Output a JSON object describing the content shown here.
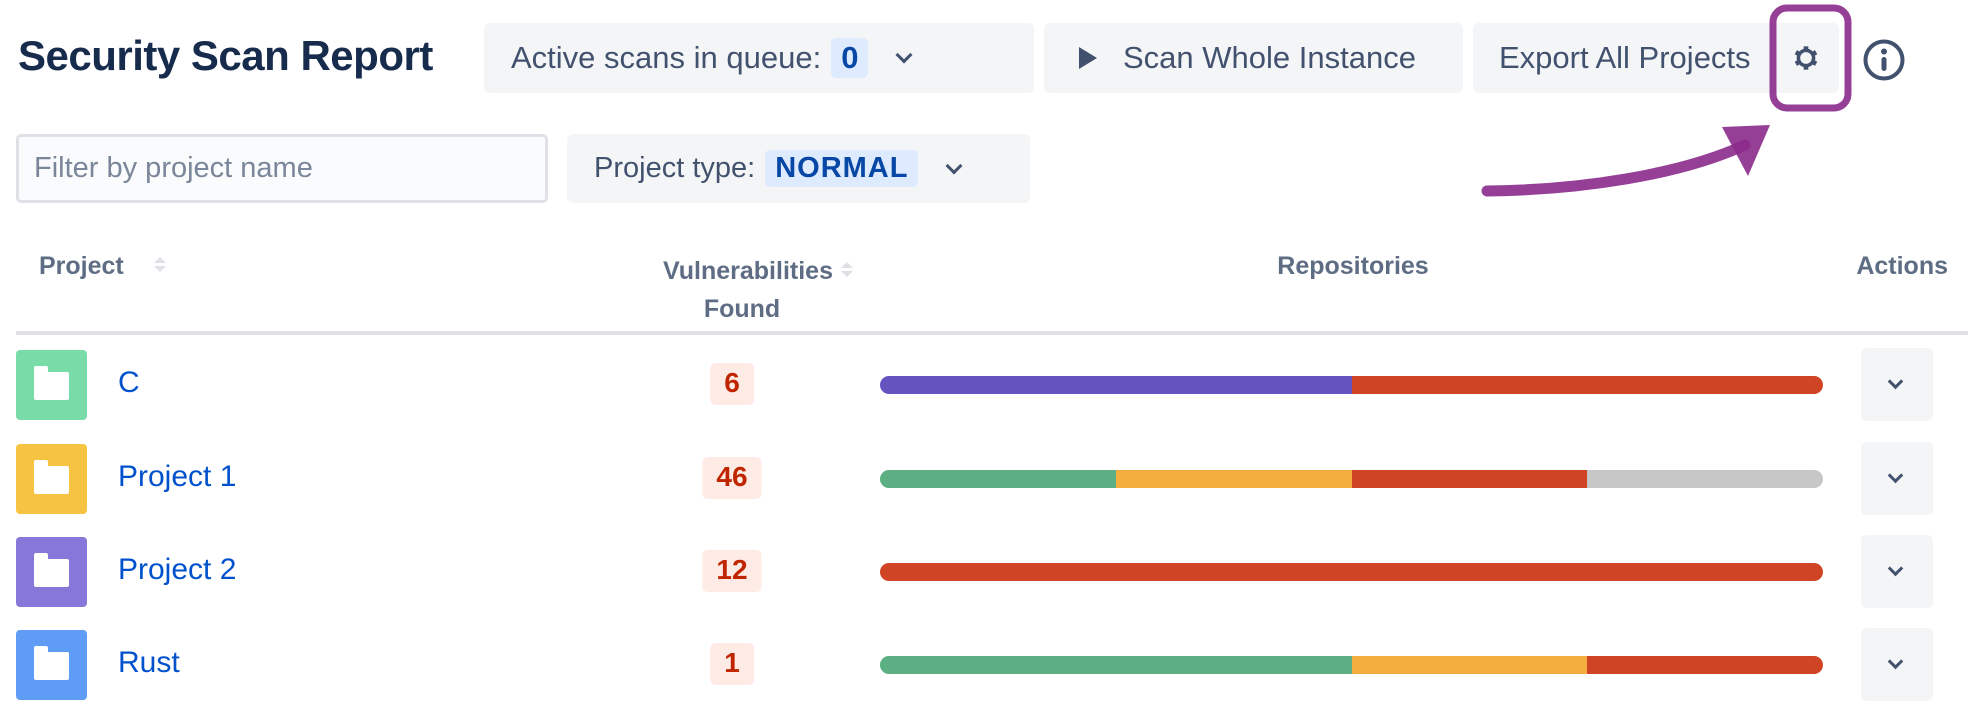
{
  "header": {
    "title": "Security Scan Report",
    "queue_label": "Active scans in queue:",
    "queue_count": "0",
    "scan_label": "Scan Whole Instance",
    "export_label": "Export All Projects",
    "settings_icon": "gear-icon",
    "info_icon": "info-icon"
  },
  "filters": {
    "search_placeholder": "Filter by project name",
    "search_value": "",
    "project_type_label": "Project type:",
    "project_type_value": "NORMAL"
  },
  "table": {
    "columns": {
      "project": "Project",
      "vulns_line1": "Vulnerabilities",
      "vulns_line2": "Found",
      "repos": "Repositories",
      "actions": "Actions"
    },
    "rows": [
      {
        "name": "C",
        "vulns": "6",
        "icon_color": "#79dba8",
        "segments": [
          {
            "fraction": 0.5,
            "color": "#6554c0"
          },
          {
            "fraction": 0.5,
            "color": "#cf4425"
          }
        ]
      },
      {
        "name": "Project 1",
        "vulns": "46",
        "icon_color": "#f6c342",
        "segments": [
          {
            "fraction": 0.25,
            "color": "#5baf82"
          },
          {
            "fraction": 0.25,
            "color": "#f3ae3d"
          },
          {
            "fraction": 0.25,
            "color": "#cf4425"
          },
          {
            "fraction": 0.25,
            "color": "#c6c6c6"
          }
        ]
      },
      {
        "name": "Project 2",
        "vulns": "12",
        "icon_color": "#8777d9",
        "segments": [
          {
            "fraction": 1,
            "color": "#cf4425"
          }
        ]
      },
      {
        "name": "Rust",
        "vulns": "1",
        "icon_color": "#5e9cf5",
        "segments": [
          {
            "fraction": 0.5,
            "color": "#5baf82"
          },
          {
            "fraction": 0.25,
            "color": "#f3ae3d"
          },
          {
            "fraction": 0.25,
            "color": "#cf4425"
          }
        ]
      }
    ]
  },
  "annotation": {
    "color": "#8b2a8b"
  }
}
